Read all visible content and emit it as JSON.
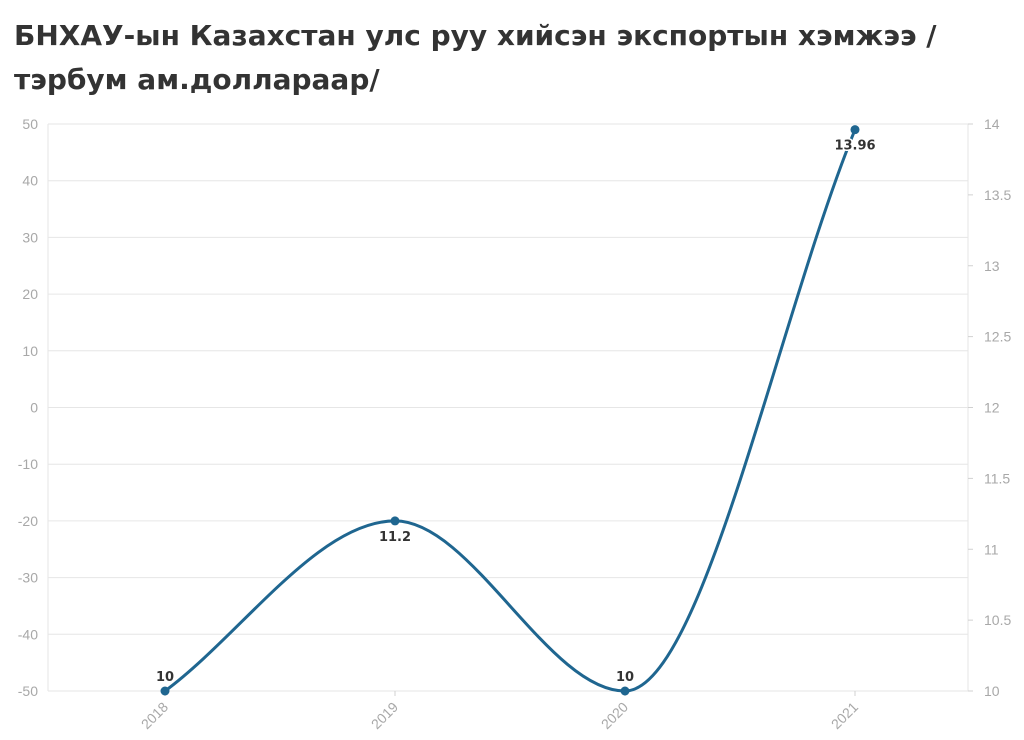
{
  "title": "БНХАУ-ын Казахстан улс руу хийсэн экспортын хэмжээ /тэрбум ам.доллараар/",
  "chart_data": {
    "type": "line",
    "title": "БНХАУ-ын Казахстан улс руу хийсэн экспортын хэмжээ /тэрбум ам.доллараар/",
    "categories": [
      "2018",
      "2019",
      "2020",
      "2021"
    ],
    "series": [
      {
        "values": [
          10,
          11.2,
          10,
          13.96
        ],
        "labels": [
          "10",
          "11.2",
          "10",
          "13.96"
        ],
        "axis": "right"
      }
    ],
    "y_left": {
      "ticks": [
        "50",
        "40",
        "30",
        "20",
        "10",
        "0",
        "-10",
        "-20",
        "-30",
        "-40",
        "-50"
      ],
      "ylim": [
        -50,
        50
      ]
    },
    "y_right": {
      "ticks": [
        "14",
        "13.5",
        "13",
        "12.5",
        "12",
        "11.5",
        "11",
        "10.5",
        "10"
      ],
      "ylim": [
        10,
        14
      ]
    },
    "grid": true,
    "legend": "none",
    "line_color": "#1f6690",
    "curve": "smooth"
  }
}
